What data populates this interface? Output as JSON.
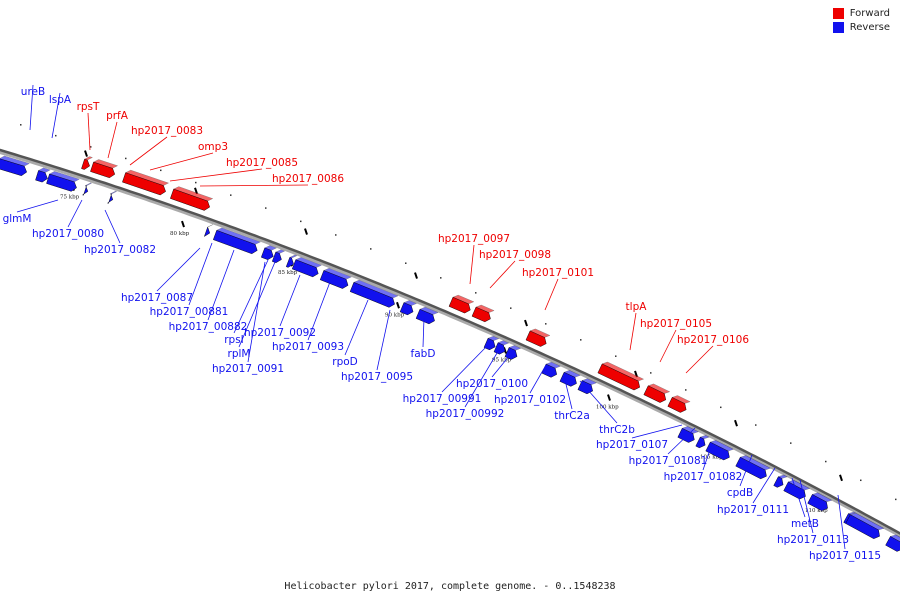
{
  "legend": {
    "forward_label": "Forward",
    "reverse_label": "Reverse",
    "forward_color": "#ee0000",
    "reverse_color": "#1111ee"
  },
  "caption": "Helicobacter pylori 2017, complete genome. - 0..1548238",
  "ticks": [
    "75 kbp",
    "80 kbp",
    "85 kbp",
    "90 kbp",
    "95 kbp",
    "100 kbp",
    "105 kbp",
    "110 kbp"
  ],
  "genes": [
    {
      "name": "ureB",
      "strand": "reverse"
    },
    {
      "name": "lspA",
      "strand": "reverse"
    },
    {
      "name": "rpsT",
      "strand": "forward"
    },
    {
      "name": "prfA",
      "strand": "forward"
    },
    {
      "name": "hp2017_0083",
      "strand": "forward"
    },
    {
      "name": "omp3",
      "strand": "forward"
    },
    {
      "name": "hp2017_0085",
      "strand": "forward"
    },
    {
      "name": "hp2017_0086",
      "strand": "forward"
    },
    {
      "name": "glmM",
      "strand": "reverse"
    },
    {
      "name": "hp2017_0080",
      "strand": "reverse"
    },
    {
      "name": "hp2017_0082",
      "strand": "reverse"
    },
    {
      "name": "hp2017_0087",
      "strand": "reverse"
    },
    {
      "name": "hp2017_00881",
      "strand": "reverse"
    },
    {
      "name": "hp2017_00882",
      "strand": "reverse"
    },
    {
      "name": "rpsI",
      "strand": "reverse"
    },
    {
      "name": "rplM",
      "strand": "reverse"
    },
    {
      "name": "hp2017_0091",
      "strand": "reverse"
    },
    {
      "name": "hp2017_0092",
      "strand": "reverse"
    },
    {
      "name": "hp2017_0093",
      "strand": "reverse"
    },
    {
      "name": "rpoD",
      "strand": "reverse"
    },
    {
      "name": "hp2017_0095",
      "strand": "reverse"
    },
    {
      "name": "fabD",
      "strand": "reverse"
    },
    {
      "name": "hp2017_0097",
      "strand": "forward"
    },
    {
      "name": "hp2017_0098",
      "strand": "forward"
    },
    {
      "name": "hp2017_0101",
      "strand": "forward"
    },
    {
      "name": "hp2017_00991",
      "strand": "reverse"
    },
    {
      "name": "hp2017_00992",
      "strand": "reverse"
    },
    {
      "name": "hp2017_0100",
      "strand": "reverse"
    },
    {
      "name": "hp2017_0102",
      "strand": "reverse"
    },
    {
      "name": "tlpA",
      "strand": "forward"
    },
    {
      "name": "hp2017_0105",
      "strand": "forward"
    },
    {
      "name": "hp2017_0106",
      "strand": "forward"
    },
    {
      "name": "thrC2a",
      "strand": "reverse"
    },
    {
      "name": "thrC2b",
      "strand": "reverse"
    },
    {
      "name": "hp2017_0107",
      "strand": "reverse"
    },
    {
      "name": "hp2017_01081",
      "strand": "reverse"
    },
    {
      "name": "hp2017_01082",
      "strand": "reverse"
    },
    {
      "name": "cpdB",
      "strand": "reverse"
    },
    {
      "name": "hp2017_0111",
      "strand": "reverse"
    },
    {
      "name": "metB",
      "strand": "reverse"
    },
    {
      "name": "hp2017_0113",
      "strand": "reverse"
    },
    {
      "name": "hp2017_0115",
      "strand": "reverse"
    }
  ]
}
